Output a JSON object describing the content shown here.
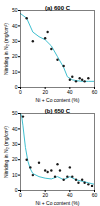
{
  "chart_data": [
    {
      "type": "scatter",
      "title": "(a) 600 C",
      "xlabel": "Ni + Co content (%)",
      "ylabel": "Nitriding in N₂ (mg/cm²)",
      "xlim": [
        0,
        60
      ],
      "ylim": [
        0,
        50
      ],
      "xticks": [
        0,
        20,
        40,
        60
      ],
      "yticks": [
        0,
        10,
        20,
        30,
        40,
        50
      ],
      "series": [
        {
          "type": "line",
          "color": "#40c0d0",
          "x": [
            0,
            5,
            10,
            15,
            20,
            25,
            30,
            35,
            38,
            42,
            45,
            50,
            55,
            60
          ],
          "values": [
            48,
            45,
            36,
            33,
            31,
            27,
            20,
            13,
            7,
            5,
            4.5,
            4,
            4,
            4
          ]
        },
        {
          "type": "scatter",
          "color": "#1a1a1a",
          "x": [
            5,
            10,
            20,
            22,
            25,
            30,
            35,
            40,
            42,
            45,
            48,
            50,
            52,
            55
          ],
          "values": [
            45,
            30,
            32,
            36,
            25,
            18,
            14,
            5,
            7,
            4,
            6,
            5,
            4,
            6
          ]
        }
      ]
    },
    {
      "type": "scatter",
      "title": "(b) 650 C",
      "xlabel": "Ni + Co content (%)",
      "ylabel": "Nitriding in N₂ (mg/cm²)",
      "xlim": [
        0,
        60
      ],
      "ylim": [
        0,
        50
      ],
      "xticks": [
        0,
        20,
        40,
        60
      ],
      "yticks": [
        0,
        10,
        20,
        30,
        40,
        50
      ],
      "series": [
        {
          "type": "line",
          "color": "#40c0d0",
          "x": [
            0,
            1,
            2,
            4,
            6,
            8,
            10,
            15,
            20,
            25,
            30,
            35,
            40,
            45,
            50,
            55,
            60
          ],
          "values": [
            50,
            48,
            42,
            28,
            19,
            14,
            11,
            9,
            8,
            7.5,
            9,
            7,
            9,
            7,
            6,
            5,
            4
          ]
        },
        {
          "type": "scatter",
          "color": "#1a1a1a",
          "x": [
            2,
            5,
            8,
            10,
            15,
            20,
            22,
            25,
            28,
            30,
            32,
            35,
            38,
            40,
            42,
            45,
            47,
            50,
            52,
            55,
            58
          ],
          "values": [
            48,
            20,
            15,
            10,
            18,
            13,
            12,
            13,
            9,
            17,
            13,
            7,
            9,
            15,
            9,
            7,
            5,
            7,
            5,
            4,
            3
          ]
        }
      ]
    }
  ]
}
